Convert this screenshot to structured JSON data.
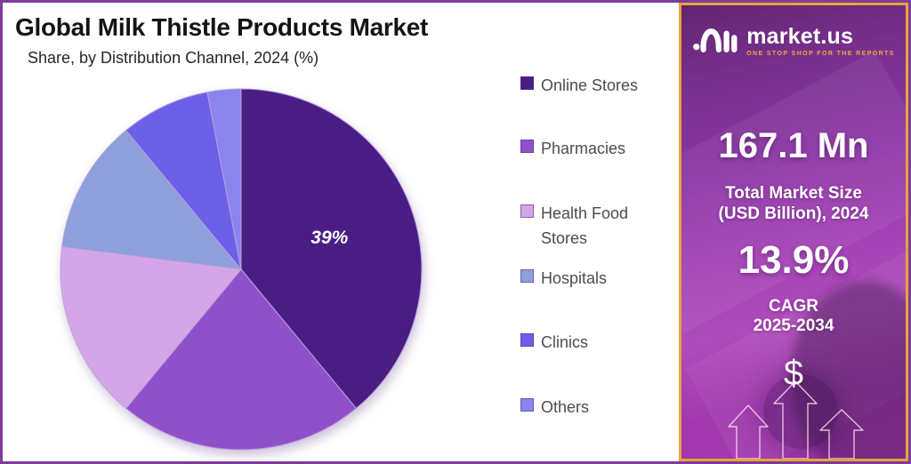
{
  "page": {
    "title": "Global Milk Thistle Products Market",
    "subtitle": "Share, by Distribution Channel, 2024 (%)"
  },
  "chart_data": {
    "type": "pie",
    "title": "Global Milk Thistle Products Market",
    "subtitle": "Share, by Distribution Channel, 2024 (%)",
    "unit": "%",
    "labels": [
      "Online Stores",
      "Pharmacies",
      "Health Food Stores",
      "Hospitals",
      "Clinics",
      "Others"
    ],
    "values": [
      39,
      22,
      16,
      12,
      8,
      3
    ],
    "colors": [
      "#4a1d85",
      "#8f51c9",
      "#d5a6e7",
      "#8e9fdb",
      "#6c5fe8",
      "#8a85ee"
    ],
    "slice_stroke": "#b9a0de",
    "shown_label": {
      "slice_index": 0,
      "text": "39%"
    },
    "start_angle_deg": 0,
    "direction": "clockwise",
    "legend_position": "right"
  },
  "sidebar": {
    "brand_name": "market.us",
    "brand_tagline": "ONE STOP SHOP FOR THE REPORTS",
    "stat1_value": "167.1 Mn",
    "stat1_label_line1": "Total Market Size",
    "stat1_label_line2": "(USD Billion), 2024",
    "stat2_value": "13.9%",
    "stat2_label_line1": "CAGR",
    "stat2_label_line2": "2025-2034",
    "dollar_symbol": "$",
    "colors": {
      "border": "#e8a33c",
      "tagline": "#f2a93b"
    }
  }
}
